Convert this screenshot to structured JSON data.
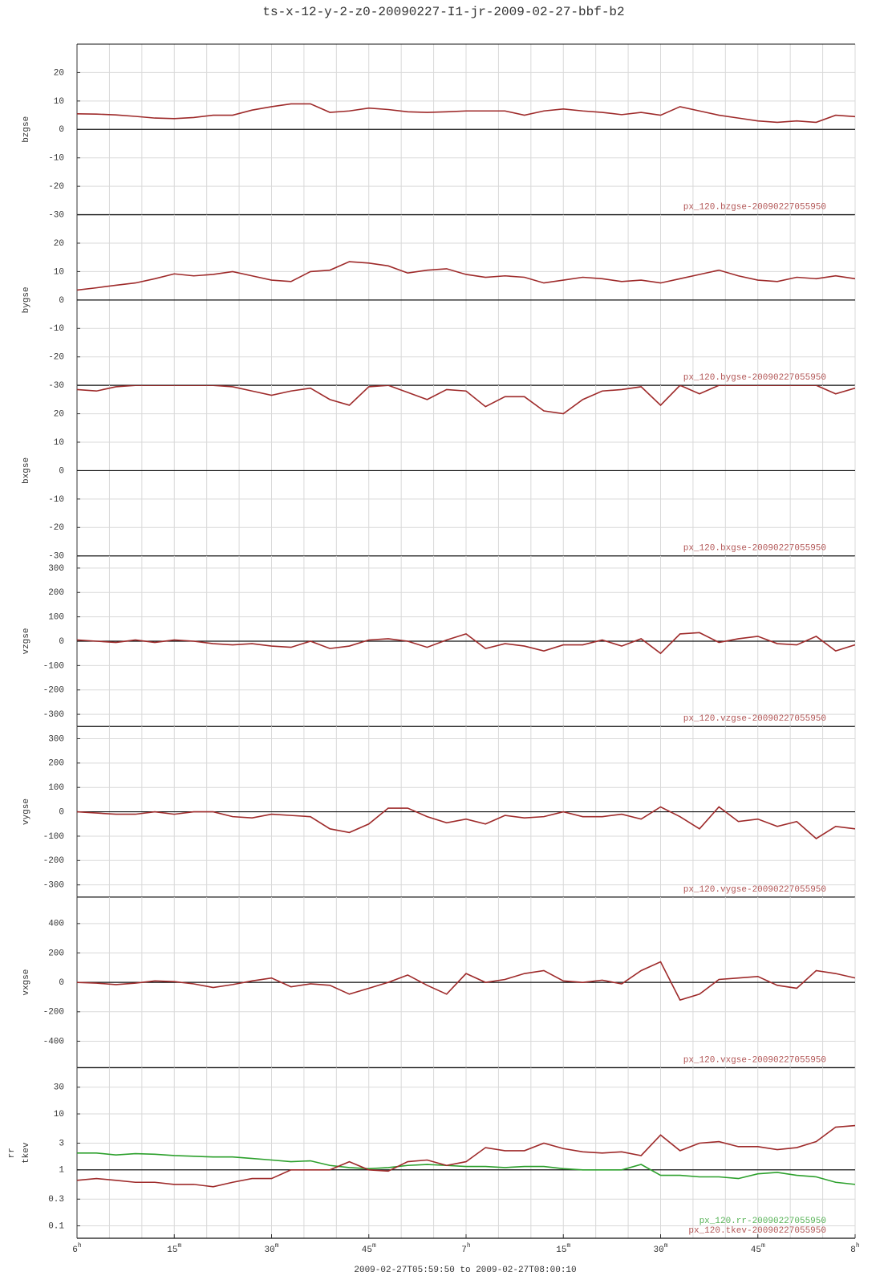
{
  "title": "ts-x-12-y-2-z0-20090227-I1-jr-2009-02-27-bbf-b2",
  "x_label": "2009-02-27T05:59:50 to 2009-02-27T08:00:10",
  "xlim": [
    0,
    120
  ],
  "xticks": [
    {
      "value": 0,
      "label": "6h"
    },
    {
      "value": 15,
      "label": "15m"
    },
    {
      "value": 30,
      "label": "30m"
    },
    {
      "value": 45,
      "label": "45m"
    },
    {
      "value": 60,
      "label": "7h"
    },
    {
      "value": 75,
      "label": "15m"
    },
    {
      "value": 90,
      "label": "30m"
    },
    {
      "value": 105,
      "label": "45m"
    },
    {
      "value": 120,
      "label": "8h"
    }
  ],
  "xgrid": [
    0,
    5,
    10,
    15,
    20,
    25,
    30,
    35,
    40,
    45,
    50,
    55,
    60,
    65,
    70,
    75,
    80,
    85,
    90,
    95,
    100,
    105,
    110,
    115,
    120
  ],
  "x": [
    0,
    3,
    6,
    9,
    12,
    15,
    18,
    21,
    24,
    27,
    30,
    33,
    36,
    39,
    42,
    45,
    48,
    51,
    54,
    57,
    60,
    63,
    66,
    69,
    72,
    75,
    78,
    81,
    84,
    87,
    90,
    93,
    96,
    99,
    102,
    105,
    108,
    111,
    114,
    117,
    120
  ],
  "chart_data": [
    {
      "type": "line",
      "y_label": [
        "bzgse"
      ],
      "ylim": [
        -30,
        30
      ],
      "yticks": [
        -30,
        -20,
        -10,
        0,
        10,
        20
      ],
      "ref_line": 0,
      "grid": true,
      "series": [
        {
          "name": "px_120.bzgse-20090227055950",
          "color": "#9e2a2a",
          "values": [
            5.5,
            5.4,
            5.1,
            4.6,
            4.0,
            3.8,
            4.2,
            5.0,
            5.0,
            6.8,
            8.0,
            9.0,
            9.0,
            6.0,
            6.5,
            7.5,
            7.0,
            6.2,
            6.0,
            6.2,
            6.5,
            6.5,
            6.5,
            5.0,
            6.5,
            7.2,
            6.5,
            6.0,
            5.2,
            6.0,
            5.0,
            8.0,
            6.5,
            5.0,
            4.0,
            3.0,
            2.5,
            3.0,
            2.5,
            5.0,
            4.5
          ]
        }
      ]
    },
    {
      "type": "line",
      "y_label": [
        "bygse"
      ],
      "ylim": [
        -30,
        30
      ],
      "yticks": [
        -30,
        -20,
        -10,
        0,
        10,
        20
      ],
      "ref_line": 0,
      "grid": true,
      "series": [
        {
          "name": "px_120.bygse-20090227055950",
          "color": "#9e2a2a",
          "values": [
            3.5,
            4.3,
            5.2,
            6.0,
            7.5,
            9.2,
            8.5,
            9.0,
            10.0,
            8.5,
            7.0,
            6.5,
            10.0,
            10.5,
            13.5,
            13.0,
            12.0,
            9.5,
            10.5,
            11.0,
            9.0,
            8.0,
            8.5,
            8.0,
            6.0,
            7.0,
            8.0,
            7.5,
            6.5,
            7.0,
            6.0,
            7.5,
            9.0,
            10.5,
            8.5,
            7.0,
            6.5,
            8.0,
            7.5,
            8.5,
            7.5
          ]
        }
      ]
    },
    {
      "type": "line",
      "y_label": [
        "bxgse"
      ],
      "ylim": [
        -30,
        30
      ],
      "yticks": [
        -30,
        -20,
        -10,
        0,
        10,
        20
      ],
      "ref_line": 0,
      "grid": true,
      "series": [
        {
          "name": "px_120.bxgse-20090227055950",
          "color": "#9e2a2a",
          "values": [
            28.5,
            28.0,
            29.5,
            30,
            30,
            30,
            30,
            30,
            29.5,
            28.0,
            26.5,
            28.0,
            29.0,
            25.0,
            23.0,
            29.5,
            30,
            27.5,
            25.0,
            28.5,
            28.0,
            22.5,
            26.0,
            26.0,
            21.0,
            20.0,
            25.0,
            28.0,
            28.5,
            29.5,
            23.0,
            30,
            27.0,
            30,
            30,
            30,
            30,
            30,
            30,
            27.0,
            29.0
          ]
        }
      ]
    },
    {
      "type": "line",
      "y_label": [
        "vzgse"
      ],
      "ylim": [
        -350,
        350
      ],
      "yticks": [
        -300,
        -200,
        -100,
        0,
        100,
        200,
        300
      ],
      "ref_line": 0,
      "grid": true,
      "series": [
        {
          "name": "px_120.vzgse-20090227055950",
          "color": "#9e2a2a",
          "values": [
            5,
            0,
            -5,
            5,
            -5,
            5,
            0,
            -10,
            -15,
            -10,
            -20,
            -25,
            0,
            -30,
            -20,
            5,
            10,
            0,
            -25,
            5,
            30,
            -30,
            -10,
            -20,
            -40,
            -15,
            -15,
            5,
            -20,
            10,
            -50,
            30,
            35,
            -5,
            10,
            20,
            -10,
            -15,
            20,
            -40,
            -15
          ]
        }
      ]
    },
    {
      "type": "line",
      "y_label": [
        "vygse"
      ],
      "ylim": [
        -350,
        350
      ],
      "yticks": [
        -300,
        -200,
        -100,
        0,
        100,
        200,
        300
      ],
      "ref_line": 0,
      "grid": true,
      "series": [
        {
          "name": "px_120.vygse-20090227055950",
          "color": "#9e2a2a",
          "values": [
            0,
            -5,
            -10,
            -10,
            0,
            -10,
            0,
            0,
            -20,
            -25,
            -10,
            -15,
            -20,
            -70,
            -85,
            -50,
            15,
            15,
            -20,
            -45,
            -30,
            -50,
            -15,
            -25,
            -20,
            0,
            -20,
            -20,
            -10,
            -30,
            20,
            -20,
            -70,
            20,
            -40,
            -30,
            -60,
            -40,
            -110,
            -60,
            -70
          ]
        }
      ]
    },
    {
      "type": "line",
      "y_label": [
        "vxgse"
      ],
      "ylim": [
        -580,
        580
      ],
      "yticks": [
        -400,
        -200,
        0,
        200,
        400
      ],
      "ref_line": 0,
      "grid": true,
      "series": [
        {
          "name": "px_120.vxgse-20090227055950",
          "color": "#9e2a2a",
          "values": [
            0,
            -5,
            -15,
            -5,
            10,
            5,
            -10,
            -35,
            -15,
            10,
            30,
            -30,
            -10,
            -20,
            -80,
            -40,
            0,
            50,
            -20,
            -80,
            60,
            0,
            20,
            60,
            80,
            10,
            0,
            15,
            -10,
            80,
            140,
            -120,
            -80,
            20,
            30,
            40,
            -20,
            -40,
            80,
            60,
            30
          ]
        }
      ]
    },
    {
      "type": "line",
      "y_label": [
        "rr",
        "tkev"
      ],
      "log": true,
      "ylim": [
        0.06,
        67
      ],
      "yticks": [
        0.1,
        0.3,
        1,
        3,
        10,
        30
      ],
      "ref_line": 1,
      "grid": true,
      "series": [
        {
          "name": "px_120.rr-20090227055950",
          "color": "#2ca02c",
          "values": [
            2.0,
            2.0,
            1.85,
            1.95,
            1.9,
            1.8,
            1.75,
            1.7,
            1.7,
            1.6,
            1.5,
            1.4,
            1.45,
            1.2,
            1.1,
            1.05,
            1.1,
            1.2,
            1.25,
            1.2,
            1.15,
            1.15,
            1.1,
            1.15,
            1.15,
            1.05,
            1.0,
            1.0,
            1.0,
            1.25,
            0.8,
            0.8,
            0.75,
            0.75,
            0.7,
            0.85,
            0.9,
            0.8,
            0.75,
            0.6,
            0.55
          ]
        },
        {
          "name": "px_120.tkev-20090227055950",
          "color": "#9e2a2a",
          "values": [
            0.65,
            0.7,
            0.65,
            0.6,
            0.6,
            0.55,
            0.55,
            0.5,
            0.6,
            0.7,
            0.7,
            1.0,
            1.0,
            1.0,
            1.4,
            1.0,
            0.95,
            1.4,
            1.5,
            1.2,
            1.4,
            2.5,
            2.2,
            2.2,
            3.0,
            2.4,
            2.1,
            2.0,
            2.1,
            1.8,
            4.2,
            2.2,
            3.0,
            3.2,
            2.6,
            2.6,
            2.3,
            2.5,
            3.2,
            5.8,
            6.2
          ]
        }
      ]
    }
  ]
}
